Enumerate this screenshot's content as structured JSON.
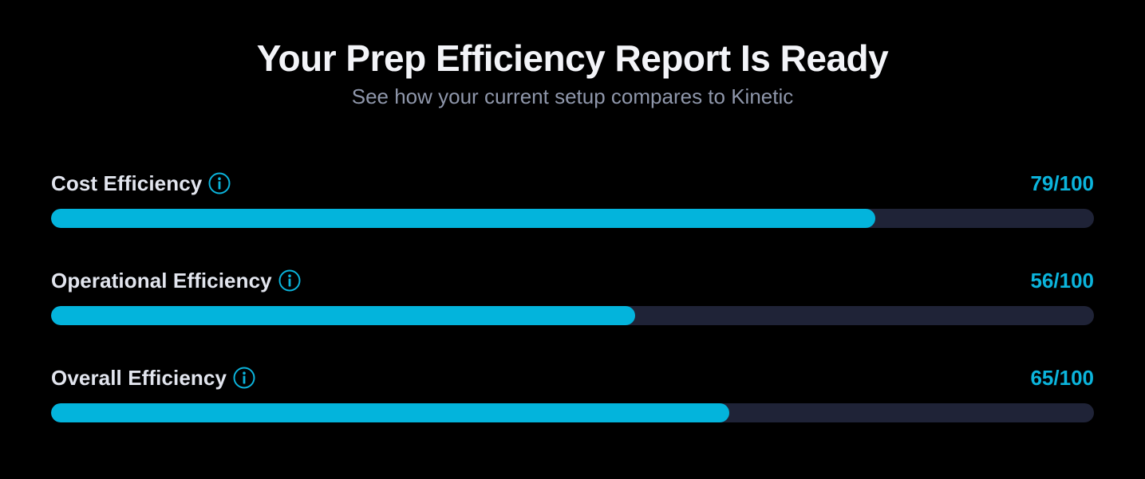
{
  "header": {
    "title": "Your Prep Efficiency Report Is Ready",
    "subtitle": "See how your current setup compares to Kinetic"
  },
  "colors": {
    "accent": "#03b4dc",
    "track": "#1f2337",
    "background": "#000000"
  },
  "metrics": [
    {
      "label": "Cost Efficiency",
      "score_text": "79/100",
      "score": 79,
      "max": 100,
      "icon": "info-icon"
    },
    {
      "label": "Operational Efficiency",
      "score_text": "56/100",
      "score": 56,
      "max": 100,
      "icon": "info-icon"
    },
    {
      "label": "Overall Efficiency",
      "score_text": "65/100",
      "score": 65,
      "max": 100,
      "icon": "info-icon"
    }
  ]
}
